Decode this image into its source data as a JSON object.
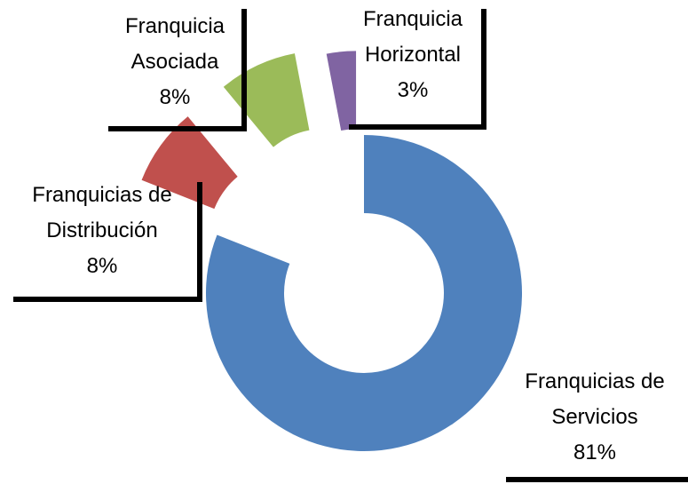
{
  "chart_data": {
    "type": "donut",
    "categories": [
      "Franquicias de Servicios",
      "Franquicias de Distribución",
      "Franquicia Asociada",
      "Franquicia Horizontal"
    ],
    "values": [
      81,
      8,
      8,
      3
    ],
    "value_labels": [
      "81%",
      "8%",
      "8%",
      "3%"
    ],
    "colors": [
      "#4f81bd",
      "#c0504d",
      "#9bbb59",
      "#8064a2"
    ]
  }
}
